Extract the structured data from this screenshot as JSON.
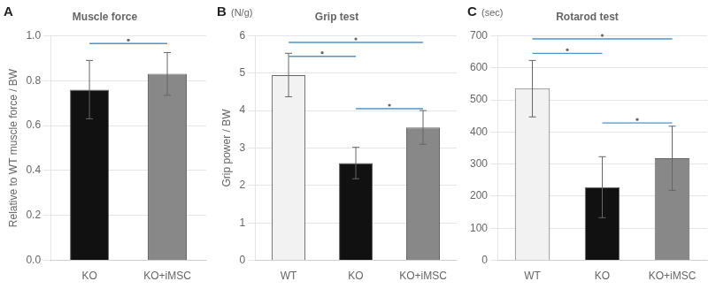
{
  "chart_data": [
    {
      "type": "bar",
      "title": "Muscle force",
      "panel_label": "A",
      "ylabel": "Relative to WT muscle force / BW",
      "categories": [
        "KO",
        "KO+iMSC"
      ],
      "values": [
        0.76,
        0.83
      ],
      "errors": [
        0.13,
        0.095
      ],
      "colors": [
        "#111111",
        "#888888"
      ],
      "ylim": [
        0,
        1.0
      ],
      "yticks": [
        {
          "value": 0,
          "label": "0.0"
        },
        0.2,
        0.4,
        0.6,
        0.8,
        {
          "value": 1.0,
          "label": "1.0"
        }
      ],
      "grid": true,
      "sig_bars": [
        {
          "from": "KO",
          "to": "KO+iMSC",
          "y": 0.965,
          "color": "#4d94cc"
        }
      ]
    },
    {
      "type": "bar",
      "title": "Grip test",
      "panel_label": "B",
      "unit_label": "(N/g)",
      "ylabel": "Grip power / BW",
      "categories": [
        "WT",
        "KO",
        "KO+iMSC"
      ],
      "values": [
        4.95,
        2.6,
        3.55
      ],
      "errors": [
        0.58,
        0.42,
        0.45
      ],
      "colors": [
        "#f2f2f2",
        "#111111",
        "#888888"
      ],
      "ylim": [
        0,
        6
      ],
      "yticks": [
        0,
        1,
        2,
        3,
        4,
        5,
        6
      ],
      "grid": true,
      "sig_bars": [
        {
          "from": "WT",
          "to": "KO",
          "y": 5.45,
          "color": "#4d94cc"
        },
        {
          "from": "WT",
          "to": "KO+iMSC",
          "y": 5.82,
          "color": "#4d94cc"
        },
        {
          "from": "KO",
          "to": "KO+iMSC",
          "y": 4.05,
          "color": "#4d94cc"
        }
      ]
    },
    {
      "type": "bar",
      "title": "Rotarod test",
      "panel_label": "C",
      "unit_label": "(sec)",
      "categories": [
        "WT",
        "KO",
        "KO+iMSC"
      ],
      "values": [
        535,
        228,
        318
      ],
      "errors": [
        88,
        95,
        100
      ],
      "colors": [
        "#f2f2f2",
        "#111111",
        "#888888"
      ],
      "ylim": [
        0,
        700
      ],
      "yticks": [
        0,
        100,
        200,
        300,
        400,
        500,
        600,
        700
      ],
      "grid": true,
      "sig_bars": [
        {
          "from": "WT",
          "to": "KO",
          "y": 645,
          "color": "#4d94cc"
        },
        {
          "from": "WT",
          "to": "KO+iMSC",
          "y": 690,
          "color": "#4d94cc"
        },
        {
          "from": "KO",
          "to": "KO+iMSC",
          "y": 428,
          "color": "#4d94cc"
        }
      ]
    }
  ]
}
